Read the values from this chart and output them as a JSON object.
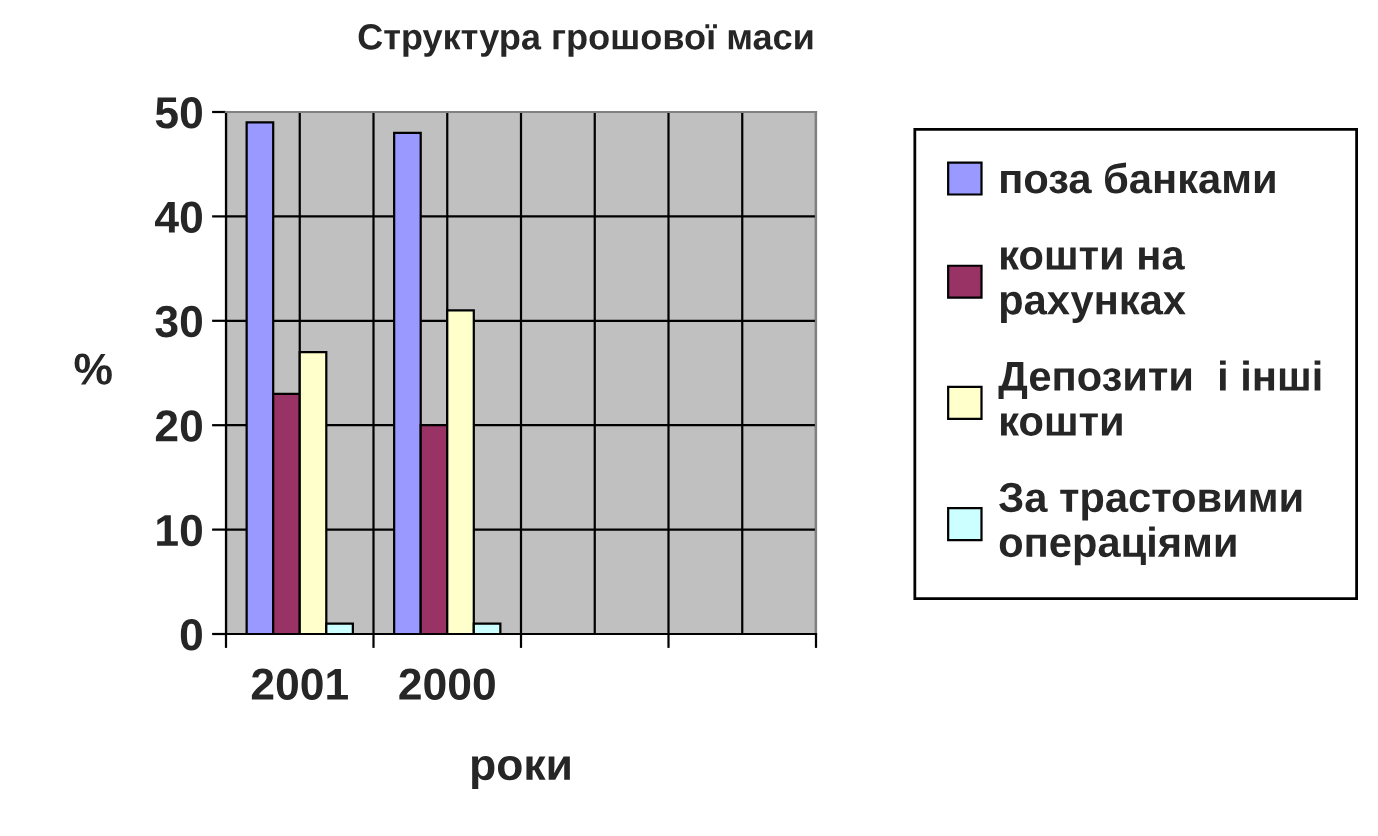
{
  "chart_data": {
    "type": "bar",
    "title": "Структура грошової маси",
    "xlabel": "роки",
    "ylabel": "%",
    "categories": [
      "2001",
      "2000",
      null,
      null
    ],
    "series": [
      {
        "name": "поза банками",
        "color": "#9999ff",
        "values": [
          49,
          48,
          null,
          null
        ]
      },
      {
        "name": "кошти на рахунках",
        "color": "#993366",
        "values": [
          23,
          20,
          null,
          null
        ]
      },
      {
        "name": "Депозити  і інші кошти",
        "color": "#ffffcc",
        "values": [
          27,
          31,
          null,
          null
        ]
      },
      {
        "name": "За трастовими операціями",
        "color": "#ccffff",
        "values": [
          1,
          1,
          null,
          null
        ]
      }
    ],
    "ylim": [
      0,
      50
    ],
    "yticks": [
      0,
      10,
      20,
      30,
      40,
      50
    ],
    "grid": true,
    "legend": "right"
  }
}
